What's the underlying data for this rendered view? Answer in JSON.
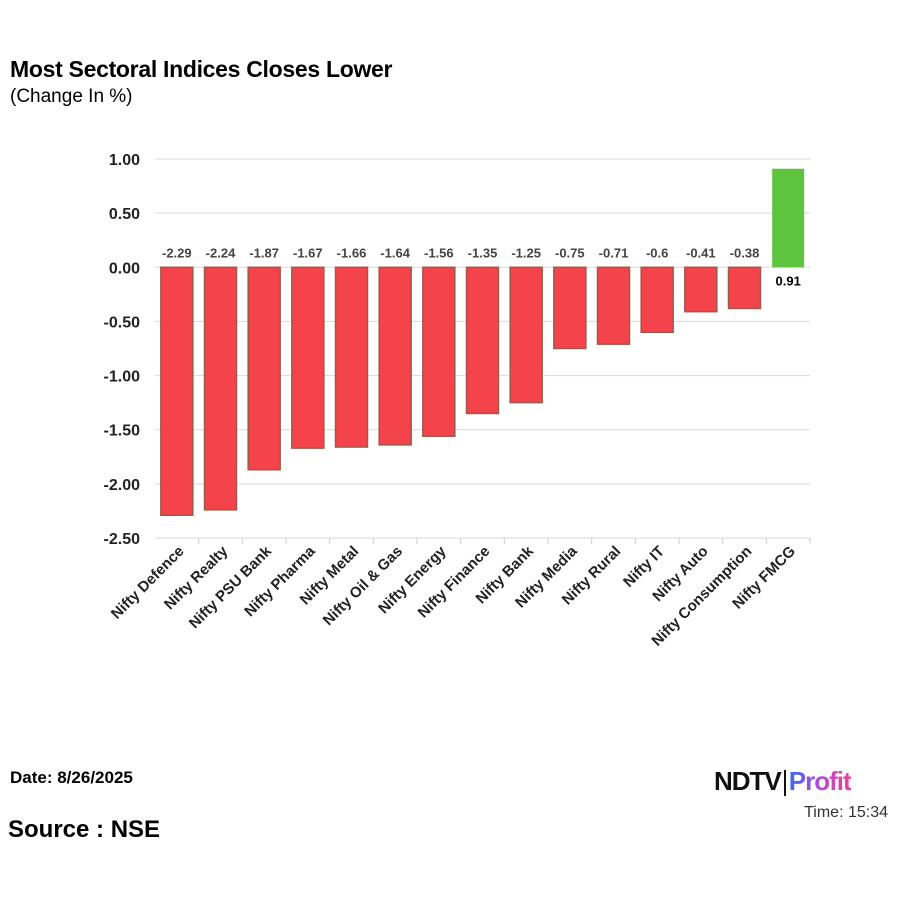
{
  "chart_data": {
    "type": "bar",
    "title": "Most Sectoral Indices Closes Lower",
    "subtitle": "(Change In %)",
    "categories": [
      "Nifty Defence",
      "Nifty Realty",
      "Nifty PSU Bank",
      "Nifty Pharma",
      "Nifty Metal",
      "Nifty Oil & Gas",
      "Nifty Energy",
      "Nifty Finance",
      "Nifty Bank",
      "Nifty Media",
      "Nifty Rural",
      "Nifty IT",
      "Nifty Auto",
      "Nifty Consumption",
      "Nifty FMCG"
    ],
    "values": [
      -2.29,
      -2.24,
      -1.87,
      -1.67,
      -1.66,
      -1.64,
      -1.56,
      -1.35,
      -1.25,
      -0.75,
      -0.71,
      -0.6,
      -0.41,
      -0.38,
      0.91
    ],
    "data_labels": [
      "-2.29",
      "-2.24",
      "-1.87",
      "-1.67",
      "-1.66",
      "-1.64",
      "-1.56",
      "-1.35",
      "-1.25",
      "-0.75",
      "-0.71",
      "-0.6",
      "-0.41",
      "-0.38",
      "0.91"
    ],
    "yticks": [
      "1.00",
      "0.50",
      "0.00",
      "-0.50",
      "-1.00",
      "-1.50",
      "-2.00",
      "-2.50"
    ],
    "ylim": [
      -2.5,
      1.0
    ],
    "xlabel": "",
    "ylabel": "",
    "grid": true,
    "colors": {
      "negative": "#f4434b",
      "negative_border": "#a0584a",
      "positive": "#5ec43e"
    }
  },
  "footer": {
    "date": "Date: 8/26/2025",
    "source": "Source : NSE",
    "time": "Time: 15:34",
    "logo_ndtv": "NDTV",
    "logo_profit": "Profit"
  }
}
